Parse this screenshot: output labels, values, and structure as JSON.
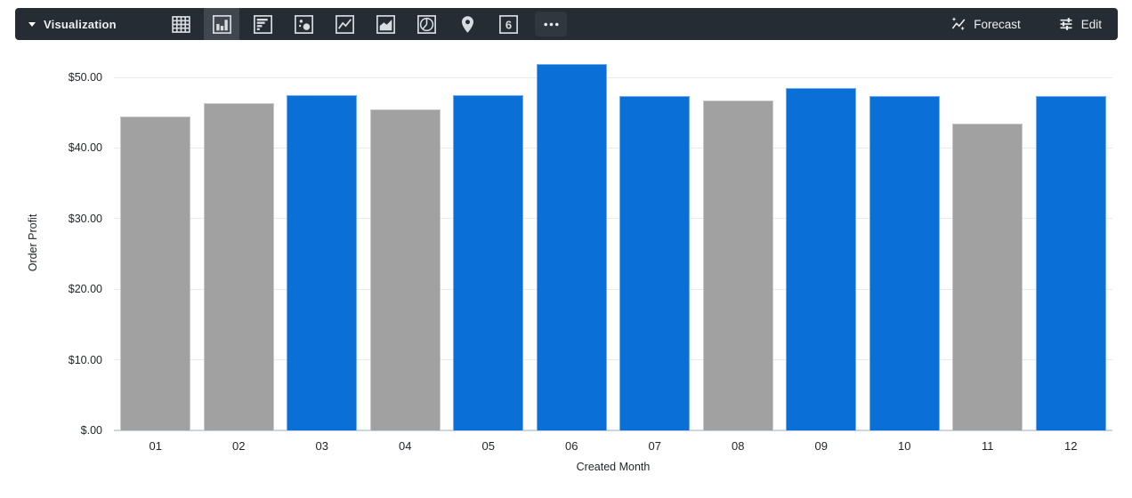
{
  "toolbar": {
    "visualization_label": "Visualization",
    "forecast_label": "Forecast",
    "edit_label": "Edit",
    "single_value_glyph": "6",
    "viz_types": [
      "table",
      "column",
      "bar",
      "scatter",
      "line",
      "area",
      "pie",
      "map",
      "single-value",
      "more"
    ],
    "selected_viz_type": "column",
    "colors": {
      "toolbar_background": "#262c33",
      "selected_background": "#40474f",
      "icon": "#d9dde1",
      "text": "#eceff1"
    }
  },
  "chart_data": {
    "type": "bar",
    "title": "",
    "xlabel": "Created Month",
    "ylabel": "Order Profit",
    "categories": [
      "01",
      "02",
      "03",
      "04",
      "05",
      "06",
      "07",
      "08",
      "09",
      "10",
      "11",
      "12"
    ],
    "values": [
      44.5,
      46.4,
      47.5,
      45.5,
      47.5,
      51.9,
      47.3,
      46.7,
      48.5,
      47.3,
      43.5,
      47.3
    ],
    "bar_colors": [
      "gray",
      "gray",
      "blue",
      "gray",
      "blue",
      "blue",
      "blue",
      "gray",
      "blue",
      "blue",
      "gray",
      "blue"
    ],
    "colors": {
      "blue": "#0a70d8",
      "gray": "#a1a1a1"
    },
    "ytick_labels": [
      "$.00",
      "$10.00",
      "$20.00",
      "$30.00",
      "$40.00",
      "$50.00"
    ],
    "ytick_values": [
      0,
      10,
      20,
      30,
      40,
      50
    ],
    "ylim": [
      0,
      53.4
    ],
    "grid": true,
    "legend": "none"
  }
}
